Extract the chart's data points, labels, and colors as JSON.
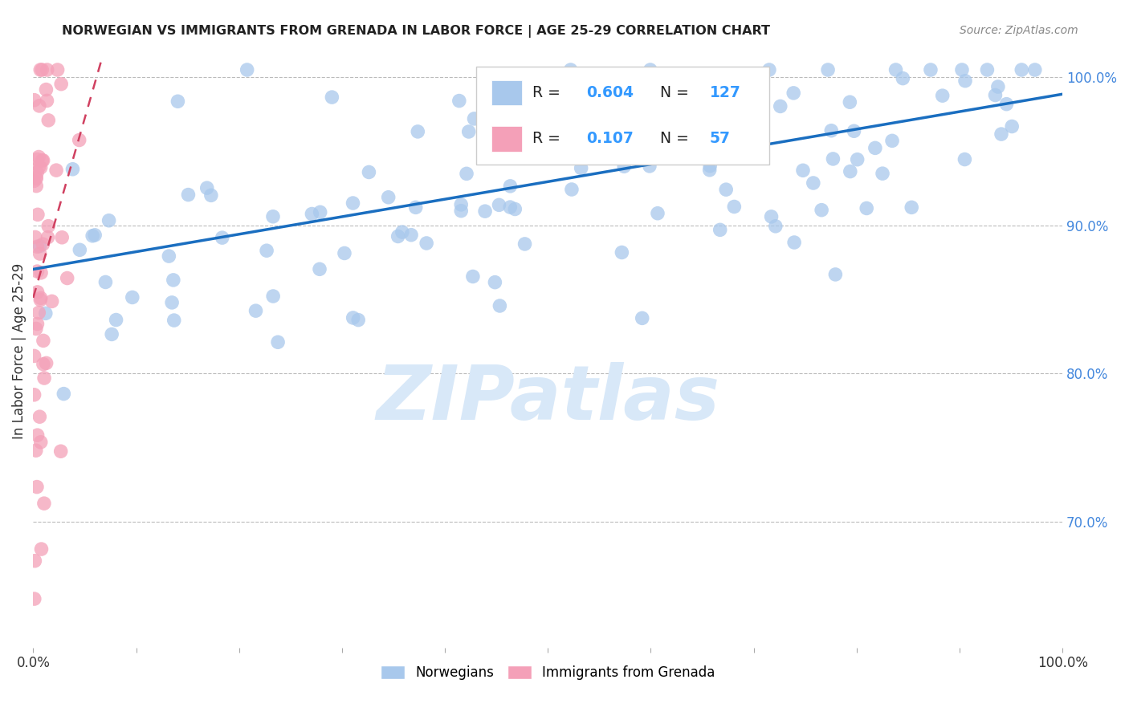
{
  "title": "NORWEGIAN VS IMMIGRANTS FROM GRENADA IN LABOR FORCE | AGE 25-29 CORRELATION CHART",
  "source": "Source: ZipAtlas.com",
  "ylabel": "In Labor Force | Age 25-29",
  "xlim": [
    0.0,
    1.0
  ],
  "ylim": [
    0.615,
    1.015
  ],
  "ytick_labels": [
    "70.0%",
    "80.0%",
    "90.0%",
    "100.0%"
  ],
  "ytick_positions": [
    0.7,
    0.8,
    0.9,
    1.0
  ],
  "norwegian_R": 0.604,
  "norwegian_N": 127,
  "grenada_R": 0.107,
  "grenada_N": 57,
  "blue_scatter_color": "#A8C8EC",
  "pink_scatter_color": "#F4A0B8",
  "blue_line_color": "#1A6EC0",
  "pink_line_color": "#D04060",
  "legend_R_color": "#3399FF",
  "title_color": "#222222",
  "source_color": "#888888",
  "ylabel_color": "#333333",
  "right_ytick_color": "#4488DD",
  "watermark_color": "#D8E8F8",
  "grid_color": "#BBBBBB",
  "background_color": "#FFFFFF"
}
